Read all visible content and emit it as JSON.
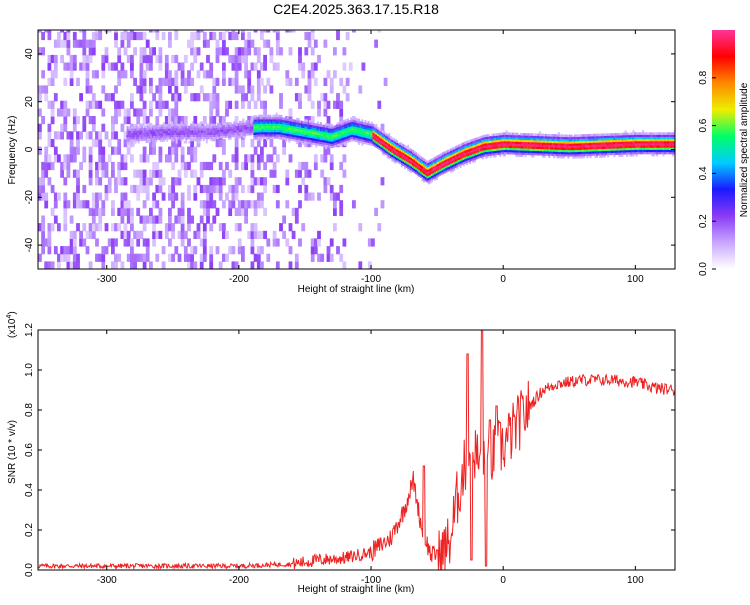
{
  "title": "C2E4.2025.363.17.15.R18",
  "chart_data": [
    {
      "type": "heatmap",
      "name": "spectrogram",
      "xlabel": "Height of straight line (km)",
      "ylabel": "Frequency (Hz)",
      "xlim": [
        -352,
        130
      ],
      "ylim": [
        -50,
        50
      ],
      "xticks": [
        -300,
        -200,
        -100,
        0,
        100
      ],
      "yticks": [
        -40,
        -20,
        0,
        20,
        40
      ],
      "ridge": [
        {
          "x": -280,
          "y": 6
        },
        {
          "x": -250,
          "y": 7
        },
        {
          "x": -220,
          "y": 7
        },
        {
          "x": -185,
          "y": 9
        },
        {
          "x": -170,
          "y": 9
        },
        {
          "x": -150,
          "y": 7
        },
        {
          "x": -130,
          "y": 5
        },
        {
          "x": -115,
          "y": 8
        },
        {
          "x": -100,
          "y": 6
        },
        {
          "x": -85,
          "y": 0
        },
        {
          "x": -70,
          "y": -5
        },
        {
          "x": -58,
          "y": -10
        },
        {
          "x": -45,
          "y": -6
        },
        {
          "x": -30,
          "y": -2
        },
        {
          "x": -15,
          "y": 1
        },
        {
          "x": 0,
          "y": 2
        },
        {
          "x": 50,
          "y": 1
        },
        {
          "x": 100,
          "y": 2
        },
        {
          "x": 130,
          "y": 2
        }
      ]
    },
    {
      "type": "line",
      "name": "snr",
      "xlabel": "Height of straight line (km)",
      "ylabel": "SNR (10 * v/v)",
      "multiplier": "(x10",
      "multiplier_exp": "4",
      "multiplier_close": ")",
      "xlim": [
        -352,
        130
      ],
      "ylim": [
        0,
        1.2
      ],
      "xticks": [
        -300,
        -200,
        -100,
        0,
        100
      ],
      "yticks": [
        0.0,
        0.2,
        0.4,
        0.6,
        0.8,
        1.0,
        1.2
      ],
      "color": "#ee2222",
      "series": [
        {
          "name": "SNR",
          "x": [
            -352,
            -300,
            -250,
            -200,
            -160,
            -140,
            -120,
            -100,
            -85,
            -75,
            -68,
            -62,
            -55,
            -48,
            -40,
            -35,
            -28,
            -22,
            -16,
            -10,
            -5,
            0,
            10,
            20,
            30,
            40,
            60,
            80,
            100,
            115,
            130
          ],
          "y": [
            0.02,
            0.02,
            0.02,
            0.02,
            0.03,
            0.05,
            0.06,
            0.09,
            0.16,
            0.3,
            0.45,
            0.22,
            0.08,
            0.06,
            0.15,
            0.35,
            0.55,
            0.6,
            0.5,
            0.55,
            0.6,
            0.62,
            0.72,
            0.82,
            0.9,
            0.93,
            0.95,
            0.95,
            0.94,
            0.91,
            0.9
          ]
        }
      ],
      "spikes": [
        {
          "x": -60,
          "y": 0.52
        },
        {
          "x": -50,
          "y": 0.1
        },
        {
          "x": -27,
          "y": 1.08
        },
        {
          "x": -24,
          "y": 0.05
        },
        {
          "x": -16,
          "y": 1.2
        },
        {
          "x": -13,
          "y": 0.02
        },
        {
          "x": -10,
          "y": 0.75
        },
        {
          "x": -5,
          "y": 0.82
        }
      ]
    }
  ],
  "colorbar": {
    "label": "Normalized spectral amplitude",
    "ticks": [
      "0.0",
      "0.2",
      "0.4",
      "0.6",
      "0.8"
    ],
    "tick_values": [
      0.0,
      0.2,
      0.4,
      0.6,
      0.8
    ],
    "stops": [
      "#ffffff",
      "#c8a6ff",
      "#8a3af5",
      "#1a1aff",
      "#00ccff",
      "#00ff66",
      "#eeee00",
      "#ff8800",
      "#ff0000",
      "#ff3399"
    ]
  }
}
